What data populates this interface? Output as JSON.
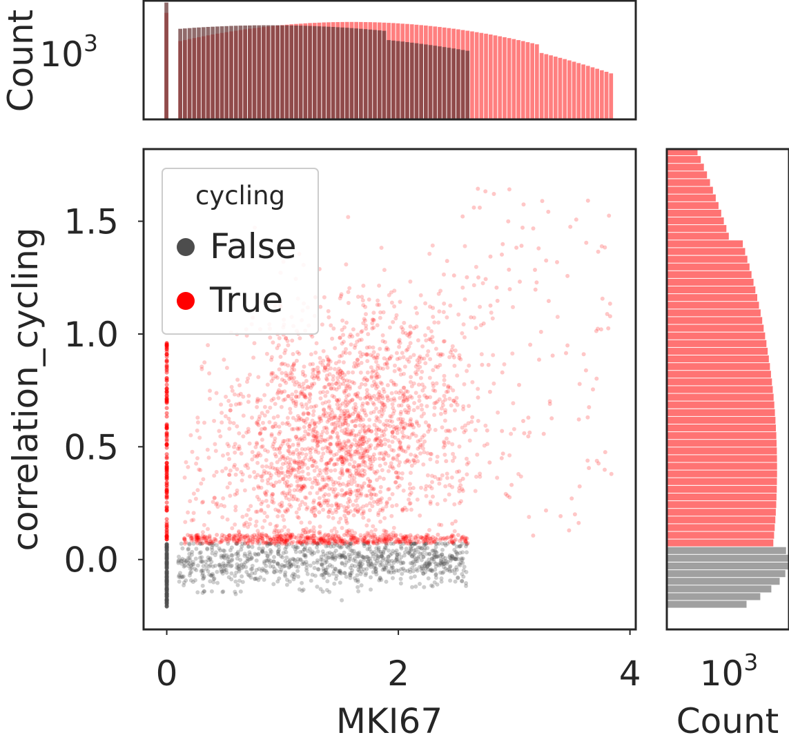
{
  "chart_data": [
    {
      "type": "scatter",
      "panel": "joint",
      "xlabel": "MKI67",
      "ylabel": "correlation_cycling",
      "xlim": [
        -0.2,
        4.05
      ],
      "ylim": [
        -0.31,
        1.82
      ],
      "x_ticks": [
        {
          "value": 0,
          "label": "0"
        },
        {
          "value": 2,
          "label": "2"
        },
        {
          "value": 4,
          "label": "4"
        }
      ],
      "y_ticks": [
        {
          "value": 0.0,
          "label": "0.0"
        },
        {
          "value": 0.5,
          "label": "0.5"
        },
        {
          "value": 1.0,
          "label": "1.0"
        },
        {
          "value": 1.5,
          "label": "1.5"
        }
      ],
      "legend": {
        "title": "cycling",
        "position": "upper-left",
        "entries": [
          {
            "label": "False",
            "color": "#4d4d4d"
          },
          {
            "label": "True",
            "color": "#ff0000"
          }
        ]
      },
      "series": [
        {
          "name": "False",
          "color": "#4d4d4d",
          "x_range": [
            0,
            2.6
          ],
          "y_range": [
            -0.2,
            0.07
          ],
          "y_center": 0.0,
          "note_zero_cluster": "dense column at MKI67 = 0"
        },
        {
          "name": "True",
          "color": "#ff0000",
          "x_range": [
            0,
            3.85
          ],
          "y_range": [
            0.07,
            1.73
          ],
          "center": [
            1.5,
            0.6
          ]
        }
      ],
      "grid": false
    },
    {
      "type": "bar",
      "panel": "marginal-x",
      "ylabel": "Count",
      "yscale": "log",
      "y_ticks": [
        {
          "value": 1000,
          "base": "10",
          "exponent": "3"
        }
      ],
      "bins_x_range": [
        0,
        3.85
      ],
      "series": [
        {
          "name": "False",
          "color": "#808080",
          "notes": "tall spike at 0, then ~600-400 counts from 0.1 to 2.6"
        },
        {
          "name": "True",
          "color": "#ff0000",
          "notes": "spike at 0, broad hump peaking ~800 near 1.5, tail to 3.85"
        }
      ]
    },
    {
      "type": "bar",
      "panel": "marginal-y",
      "orientation": "horizontal",
      "xlabel": "Count",
      "xscale": "log",
      "x_ticks": [
        {
          "value": 1000,
          "base": "10",
          "exponent": "3"
        }
      ],
      "series": [
        {
          "name": "False",
          "color": "#808080",
          "y_range": [
            -0.2,
            0.07
          ]
        },
        {
          "name": "True",
          "color": "#ff0000",
          "y_range": [
            0.07,
            1.73
          ]
        }
      ]
    }
  ]
}
